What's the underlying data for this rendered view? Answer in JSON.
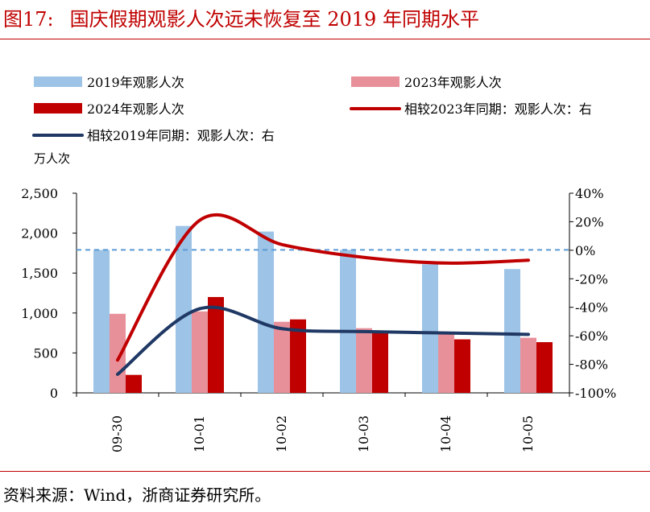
{
  "figure": {
    "number": "图17:",
    "title": "国庆假期观影人次远未恢复至 2019 年同期水平",
    "source": "资料来源：Wind，浙商证券研究所。"
  },
  "colors": {
    "title_red": "#c00000",
    "bar_2019": "#9dc3e6",
    "bar_2023": "#e8909a",
    "bar_2024": "#c00000",
    "line_vs2023": "#c00000",
    "line_vs2019": "#1f3864",
    "zero_line": "#5b9bd5"
  },
  "chart_data": {
    "type": "bar",
    "categories": [
      "09-30",
      "10-01",
      "10-02",
      "10-03",
      "10-04",
      "10-05"
    ],
    "y_left_unit": "万人次",
    "y_left_ticks": [
      "0",
      "500",
      "1,000",
      "1,500",
      "2,000",
      "2,500"
    ],
    "y_right_ticks": [
      "-100%",
      "-80%",
      "-60%",
      "-40%",
      "-20%",
      "0%",
      "20%",
      "40%"
    ],
    "ylim_left": [
      0,
      2500
    ],
    "ylim_right": [
      -100,
      40
    ],
    "legend": [
      {
        "label": "2019年观影人次",
        "kind": "bar",
        "color": "#9dc3e6"
      },
      {
        "label": "2023年观影人次",
        "kind": "bar",
        "color": "#e8909a"
      },
      {
        "label": "2024年观影人次",
        "kind": "bar",
        "color": "#c00000"
      },
      {
        "label": "相较2023年同期：观影人次：右",
        "kind": "line",
        "color": "#c00000"
      },
      {
        "label": "相较2019年同期：观影人次：右",
        "kind": "line",
        "color": "#1f3864"
      }
    ],
    "bar_series": [
      {
        "name": "2019年观影人次",
        "values": [
          1790,
          2090,
          2020,
          1790,
          1610,
          1550
        ]
      },
      {
        "name": "2023年观影人次",
        "values": [
          990,
          1020,
          890,
          810,
          740,
          690
        ]
      },
      {
        "name": "2024年观影人次",
        "values": [
          225,
          1200,
          920,
          760,
          670,
          635
        ]
      }
    ],
    "line_series": [
      {
        "name": "相较2023年同期：观影人次：右",
        "axis": "right",
        "values": [
          -77,
          21,
          4,
          -5,
          -9,
          -7
        ]
      },
      {
        "name": "相较2019年同期：观影人次：右",
        "axis": "right",
        "values": [
          -87,
          -41,
          -55,
          -57,
          -58,
          -59
        ]
      }
    ],
    "reference_line": {
      "axis": "left",
      "value": 1790,
      "style": "dashed"
    }
  }
}
